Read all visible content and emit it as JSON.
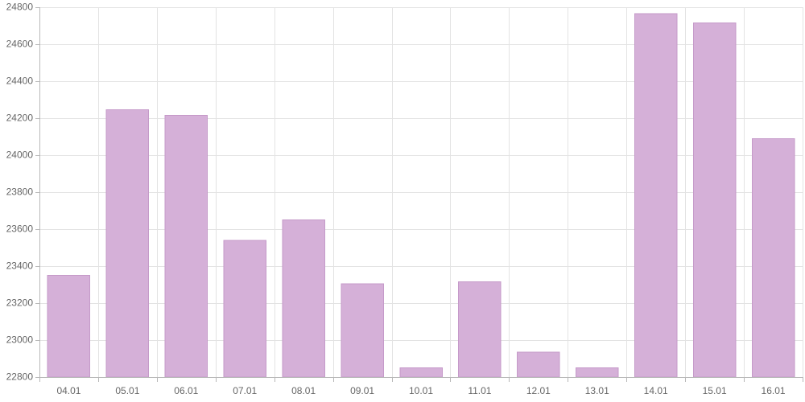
{
  "chart_data": {
    "type": "bar",
    "categories": [
      "04.01",
      "05.01",
      "06.01",
      "07.01",
      "08.01",
      "09.01",
      "10.01",
      "11.01",
      "12.01",
      "13.01",
      "14.01",
      "15.01",
      "16.01"
    ],
    "series": [
      {
        "values": [
          23350,
          24245,
          24215,
          23540,
          23650,
          23305,
          22850,
          23315,
          22935,
          22850,
          24765,
          24715,
          24090
        ],
        "color": "#d5b0d8",
        "border_color": "#c59ac9"
      }
    ],
    "ylim": [
      22800,
      24800
    ],
    "y_ticks": [
      22800,
      23000,
      23200,
      23400,
      23600,
      23800,
      24000,
      24200,
      24400,
      24600,
      24800
    ],
    "grid": true,
    "legend": "none"
  }
}
